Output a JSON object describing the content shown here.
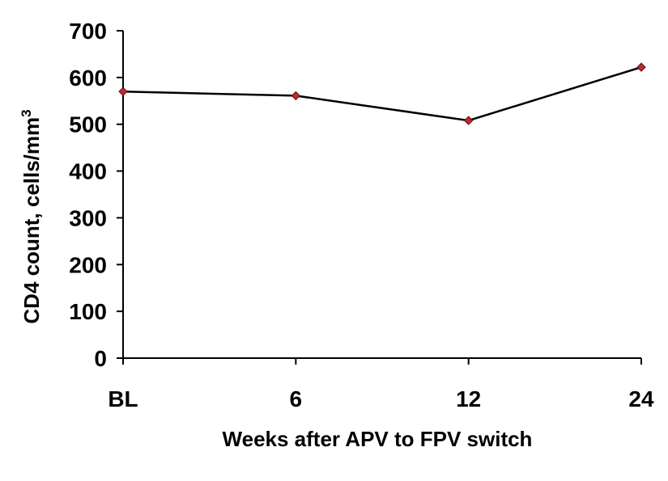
{
  "chart_data": {
    "type": "line",
    "categories": [
      "BL",
      "6",
      "12",
      "24"
    ],
    "series": [
      {
        "values": [
          570,
          561,
          508,
          622
        ]
      }
    ],
    "xlabel": "Weeks after APV to FPV switch",
    "ylabel": "CD4 count, cells/mm",
    "ylabel_superscript": "3",
    "ylim": [
      0,
      700
    ],
    "yticks": [
      0,
      100,
      200,
      300,
      400,
      500,
      600,
      700
    ],
    "grid": false,
    "line_color": "#000000",
    "marker_color": "#c0282d"
  }
}
